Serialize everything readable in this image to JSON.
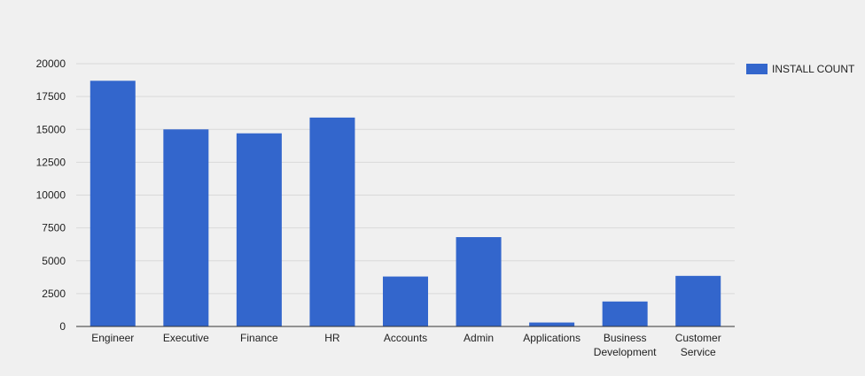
{
  "chart_data": {
    "type": "bar",
    "categories": [
      [
        "Engineer"
      ],
      [
        "Executive"
      ],
      [
        "Finance"
      ],
      [
        "HR"
      ],
      [
        "Accounts"
      ],
      [
        "Admin"
      ],
      [
        "Applications"
      ],
      [
        "Business",
        "Development"
      ],
      [
        "Customer",
        "Service"
      ]
    ],
    "series": [
      {
        "name": "INSTALL COUNT",
        "color": "#3366cc",
        "values": [
          18700,
          15000,
          14700,
          15900,
          3800,
          6800,
          300,
          1900,
          3850
        ]
      }
    ],
    "yticks": [
      "0",
      "2500",
      "5000",
      "7500",
      "10000",
      "12500",
      "15000",
      "17500",
      "20000"
    ],
    "ylim": [
      0,
      20000
    ],
    "grid": true,
    "legend_position": "right"
  }
}
